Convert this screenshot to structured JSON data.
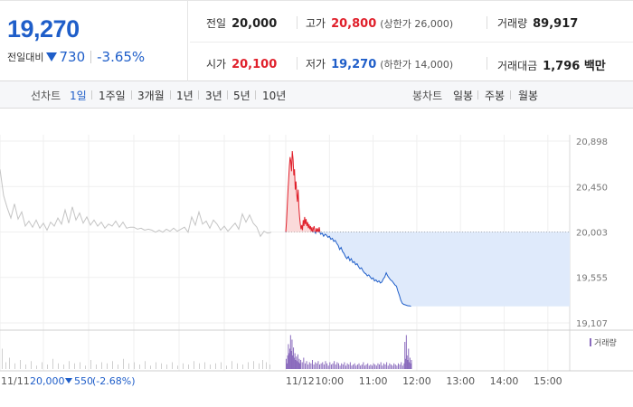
{
  "summary": {
    "price": "19,270",
    "change_label": "전일대비",
    "change_value": "730",
    "change_rate": "-3.65%",
    "prev_close_label": "전일",
    "prev_close": "20,000",
    "high_label": "고가",
    "high": "20,800",
    "upper_limit": "(상한가 26,000)",
    "volume_label": "거래량",
    "volume": "89,917",
    "open_label": "시가",
    "open": "20,100",
    "low_label": "저가",
    "low": "19,270",
    "lower_limit": "(하한가 14,000)",
    "amount_label": "거래대금",
    "amount": "1,796 백만"
  },
  "tabs": {
    "line_label": "선차트",
    "line_items": [
      "1일",
      "1주일",
      "3개월",
      "1년",
      "3년",
      "5년",
      "10년"
    ],
    "active": "1일",
    "candle_label": "봉차트",
    "candle_items": [
      "일봉",
      "주봉",
      "월봉"
    ]
  },
  "colors": {
    "up": "#e0202b",
    "down": "#1f5ec9",
    "prev_day": "#c4c4c4",
    "volume": "#8a6bbd"
  },
  "chart_data": {
    "type": "line",
    "ylim": [
      19107,
      20898
    ],
    "yticks": [
      20898,
      20450,
      20003,
      19555,
      19107
    ],
    "ytick_labels": [
      "20,898",
      "20,450",
      "20,003",
      "19,555",
      "19,107"
    ],
    "reference_price": 20003,
    "x_labels": [
      "11/11",
      "11/12",
      "10:00",
      "11:00",
      "12:00",
      "13:00",
      "14:00",
      "15:00"
    ],
    "x_label_times": [
      -1,
      0,
      60,
      120,
      180,
      240,
      300,
      360
    ],
    "session_minutes": 390,
    "prev_day_summary": {
      "date": "11/11",
      "close": "20,000",
      "change": "550",
      "rate": "(-2.68%)"
    },
    "volume_legend": "거래량",
    "prev_day_series": [
      [
        0,
        20620
      ],
      [
        4,
        20360
      ],
      [
        8,
        20240
      ],
      [
        12,
        20140
      ],
      [
        16,
        20280
      ],
      [
        20,
        20130
      ],
      [
        24,
        20200
      ],
      [
        28,
        20060
      ],
      [
        32,
        20110
      ],
      [
        36,
        20050
      ],
      [
        40,
        20120
      ],
      [
        44,
        20040
      ],
      [
        48,
        20090
      ],
      [
        52,
        20020
      ],
      [
        56,
        20100
      ],
      [
        60,
        20060
      ],
      [
        64,
        20140
      ],
      [
        68,
        20080
      ],
      [
        72,
        20220
      ],
      [
        76,
        20090
      ],
      [
        80,
        20250
      ],
      [
        84,
        20120
      ],
      [
        88,
        20190
      ],
      [
        92,
        20090
      ],
      [
        96,
        20150
      ],
      [
        100,
        20070
      ],
      [
        104,
        20120
      ],
      [
        108,
        20060
      ],
      [
        112,
        20100
      ],
      [
        116,
        20040
      ],
      [
        120,
        20080
      ],
      [
        124,
        20060
      ],
      [
        128,
        20110
      ],
      [
        132,
        20050
      ],
      [
        136,
        20100
      ],
      [
        140,
        20040
      ],
      [
        144,
        20050
      ],
      [
        148,
        20050
      ],
      [
        152,
        20030
      ],
      [
        156,
        20040
      ],
      [
        160,
        20020
      ],
      [
        164,
        20030
      ],
      [
        168,
        20020
      ],
      [
        172,
        20000
      ],
      [
        176,
        20020
      ],
      [
        180,
        20000
      ],
      [
        184,
        20030
      ],
      [
        188,
        20010
      ],
      [
        192,
        20040
      ],
      [
        196,
        20010
      ],
      [
        200,
        20030
      ],
      [
        204,
        20050
      ],
      [
        208,
        20000
      ],
      [
        212,
        20150
      ],
      [
        216,
        20070
      ],
      [
        220,
        20200
      ],
      [
        224,
        20080
      ],
      [
        228,
        20110
      ],
      [
        232,
        20040
      ],
      [
        236,
        20120
      ],
      [
        240,
        20080
      ],
      [
        244,
        20020
      ],
      [
        248,
        20060
      ],
      [
        252,
        20010
      ],
      [
        256,
        20050
      ],
      [
        260,
        20090
      ],
      [
        264,
        20030
      ],
      [
        268,
        20180
      ],
      [
        272,
        20100
      ],
      [
        276,
        20170
      ],
      [
        280,
        20090
      ],
      [
        284,
        20050
      ],
      [
        288,
        19960
      ],
      [
        292,
        20010
      ],
      [
        296,
        19990
      ],
      [
        300,
        20000
      ]
    ],
    "today_series": [
      [
        0,
        20000
      ],
      [
        1,
        20100
      ],
      [
        2,
        20250
      ],
      [
        3,
        20400
      ],
      [
        4,
        20520
      ],
      [
        5,
        20650
      ],
      [
        6,
        20740
      ],
      [
        7,
        20700
      ],
      [
        8,
        20600
      ],
      [
        9,
        20800
      ],
      [
        10,
        20720
      ],
      [
        11,
        20560
      ],
      [
        12,
        20620
      ],
      [
        13,
        20420
      ],
      [
        14,
        20500
      ],
      [
        15,
        20380
      ],
      [
        16,
        20300
      ],
      [
        17,
        20420
      ],
      [
        18,
        20250
      ],
      [
        19,
        20150
      ],
      [
        20,
        20080
      ],
      [
        21,
        20030
      ],
      [
        22,
        20070
      ],
      [
        23,
        20020
      ],
      [
        24,
        20120
      ],
      [
        25,
        20060
      ],
      [
        26,
        20150
      ],
      [
        27,
        20080
      ],
      [
        28,
        20130
      ],
      [
        29,
        20060
      ],
      [
        30,
        20100
      ],
      [
        31,
        20040
      ],
      [
        32,
        20080
      ],
      [
        33,
        20030
      ],
      [
        34,
        20060
      ],
      [
        35,
        20010
      ],
      [
        36,
        20050
      ],
      [
        37,
        20000
      ],
      [
        38,
        20040
      ],
      [
        39,
        20060
      ],
      [
        40,
        20000
      ],
      [
        41,
        19990
      ],
      [
        42,
        20040
      ],
      [
        43,
        20010
      ],
      [
        44,
        20030
      ],
      [
        45,
        20000
      ],
      [
        46,
        20050
      ],
      [
        47,
        20000
      ],
      [
        48,
        19980
      ],
      [
        50,
        19990
      ],
      [
        52,
        19960
      ],
      [
        54,
        19980
      ],
      [
        56,
        19970
      ],
      [
        58,
        19950
      ],
      [
        60,
        19960
      ],
      [
        62,
        19930
      ],
      [
        64,
        19940
      ],
      [
        66,
        19910
      ],
      [
        68,
        19920
      ],
      [
        70,
        19890
      ],
      [
        72,
        19870
      ],
      [
        74,
        19830
      ],
      [
        76,
        19850
      ],
      [
        78,
        19810
      ],
      [
        80,
        19790
      ],
      [
        82,
        19760
      ],
      [
        84,
        19740
      ],
      [
        86,
        19760
      ],
      [
        88,
        19720
      ],
      [
        90,
        19740
      ],
      [
        92,
        19700
      ],
      [
        94,
        19710
      ],
      [
        96,
        19680
      ],
      [
        98,
        19690
      ],
      [
        100,
        19660
      ],
      [
        102,
        19640
      ],
      [
        104,
        19650
      ],
      [
        106,
        19620
      ],
      [
        108,
        19600
      ],
      [
        110,
        19590
      ],
      [
        112,
        19570
      ],
      [
        114,
        19580
      ],
      [
        116,
        19560
      ],
      [
        118,
        19540
      ],
      [
        120,
        19550
      ],
      [
        122,
        19520
      ],
      [
        124,
        19530
      ],
      [
        126,
        19510
      ],
      [
        128,
        19520
      ],
      [
        130,
        19500
      ],
      [
        132,
        19510
      ],
      [
        134,
        19540
      ],
      [
        136,
        19560
      ],
      [
        138,
        19600
      ],
      [
        140,
        19570
      ],
      [
        142,
        19550
      ],
      [
        144,
        19530
      ],
      [
        146,
        19520
      ],
      [
        148,
        19500
      ],
      [
        150,
        19480
      ],
      [
        152,
        19470
      ],
      [
        154,
        19420
      ],
      [
        156,
        19380
      ],
      [
        158,
        19330
      ],
      [
        160,
        19300
      ],
      [
        162,
        19290
      ],
      [
        164,
        19285
      ],
      [
        166,
        19280
      ],
      [
        168,
        19275
      ],
      [
        170,
        19275
      ],
      [
        172,
        19270
      ]
    ],
    "prev_day_volume": [
      [
        2,
        18
      ],
      [
        6,
        6
      ],
      [
        10,
        10
      ],
      [
        16,
        5
      ],
      [
        22,
        8
      ],
      [
        28,
        4
      ],
      [
        34,
        7
      ],
      [
        40,
        3
      ],
      [
        46,
        6
      ],
      [
        52,
        4
      ],
      [
        58,
        9
      ],
      [
        64,
        5
      ],
      [
        70,
        4
      ],
      [
        76,
        7
      ],
      [
        82,
        5
      ],
      [
        88,
        6
      ],
      [
        94,
        3
      ],
      [
        100,
        8
      ],
      [
        106,
        4
      ],
      [
        112,
        6
      ],
      [
        118,
        5
      ],
      [
        124,
        7
      ],
      [
        130,
        4
      ],
      [
        136,
        9
      ],
      [
        142,
        5
      ],
      [
        148,
        6
      ],
      [
        154,
        4
      ],
      [
        160,
        7
      ],
      [
        166,
        3
      ],
      [
        172,
        6
      ],
      [
        178,
        5
      ],
      [
        184,
        4
      ],
      [
        190,
        6
      ],
      [
        196,
        3
      ],
      [
        202,
        5
      ],
      [
        208,
        4
      ],
      [
        214,
        7
      ],
      [
        220,
        5
      ],
      [
        226,
        6
      ],
      [
        232,
        4
      ],
      [
        238,
        5
      ],
      [
        244,
        6
      ],
      [
        250,
        3
      ],
      [
        256,
        7
      ],
      [
        262,
        5
      ],
      [
        268,
        4
      ],
      [
        274,
        6
      ],
      [
        280,
        7
      ],
      [
        286,
        5
      ],
      [
        290,
        8
      ],
      [
        294,
        6
      ],
      [
        298,
        4
      ]
    ],
    "today_volume": [
      [
        0,
        9
      ],
      [
        1,
        5
      ],
      [
        2,
        12
      ],
      [
        3,
        22
      ],
      [
        4,
        14
      ],
      [
        5,
        18
      ],
      [
        6,
        30
      ],
      [
        7,
        16
      ],
      [
        8,
        26
      ],
      [
        9,
        12
      ],
      [
        10,
        19
      ],
      [
        11,
        10
      ],
      [
        12,
        14
      ],
      [
        13,
        8
      ],
      [
        14,
        11
      ],
      [
        15,
        7
      ],
      [
        16,
        13
      ],
      [
        17,
        6
      ],
      [
        18,
        9
      ],
      [
        19,
        5
      ],
      [
        20,
        8
      ],
      [
        22,
        6
      ],
      [
        24,
        10
      ],
      [
        26,
        5
      ],
      [
        28,
        7
      ],
      [
        30,
        4
      ],
      [
        32,
        6
      ],
      [
        34,
        5
      ],
      [
        36,
        8
      ],
      [
        38,
        4
      ],
      [
        40,
        6
      ],
      [
        42,
        5
      ],
      [
        44,
        7
      ],
      [
        46,
        4
      ],
      [
        48,
        5
      ],
      [
        50,
        6
      ],
      [
        52,
        4
      ],
      [
        54,
        7
      ],
      [
        56,
        5
      ],
      [
        58,
        3
      ],
      [
        60,
        6
      ],
      [
        62,
        4
      ],
      [
        64,
        5
      ],
      [
        66,
        7
      ],
      [
        68,
        4
      ],
      [
        70,
        6
      ],
      [
        72,
        5
      ],
      [
        74,
        3
      ],
      [
        76,
        5
      ],
      [
        78,
        4
      ],
      [
        80,
        6
      ],
      [
        82,
        3
      ],
      [
        84,
        5
      ],
      [
        86,
        4
      ],
      [
        88,
        6
      ],
      [
        90,
        3
      ],
      [
        92,
        4
      ],
      [
        94,
        5
      ],
      [
        96,
        3
      ],
      [
        98,
        4
      ],
      [
        100,
        5
      ],
      [
        102,
        3
      ],
      [
        104,
        4
      ],
      [
        106,
        6
      ],
      [
        108,
        3
      ],
      [
        110,
        4
      ],
      [
        112,
        5
      ],
      [
        114,
        3
      ],
      [
        116,
        4
      ],
      [
        118,
        3
      ],
      [
        120,
        5
      ],
      [
        122,
        4
      ],
      [
        124,
        3
      ],
      [
        126,
        5
      ],
      [
        128,
        4
      ],
      [
        130,
        6
      ],
      [
        132,
        3
      ],
      [
        134,
        5
      ],
      [
        136,
        4
      ],
      [
        138,
        6
      ],
      [
        140,
        3
      ],
      [
        142,
        5
      ],
      [
        144,
        4
      ],
      [
        146,
        3
      ],
      [
        148,
        5
      ],
      [
        150,
        4
      ],
      [
        152,
        3
      ],
      [
        154,
        5
      ],
      [
        156,
        4
      ],
      [
        158,
        6
      ],
      [
        160,
        3
      ],
      [
        162,
        5
      ],
      [
        163,
        24
      ],
      [
        164,
        9
      ],
      [
        165,
        30
      ],
      [
        166,
        12
      ],
      [
        167,
        8
      ],
      [
        168,
        18
      ],
      [
        169,
        6
      ],
      [
        170,
        10
      ],
      [
        171,
        5
      ],
      [
        172,
        8
      ]
    ]
  }
}
